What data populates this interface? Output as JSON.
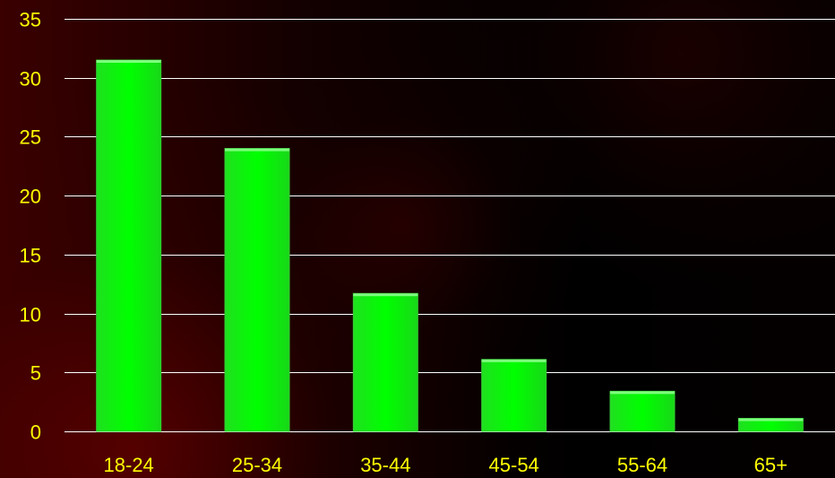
{
  "chart_data": {
    "type": "bar",
    "categories": [
      "18-24",
      "25-34",
      "35-44",
      "45-54",
      "55-64",
      "65+"
    ],
    "values": [
      31.5,
      24.0,
      11.7,
      6.1,
      3.4,
      1.1
    ],
    "title": "",
    "xlabel": "",
    "ylabel": "",
    "ylim": [
      0,
      35
    ],
    "yticks": [
      0,
      5,
      10,
      15,
      20,
      25,
      30,
      35
    ],
    "grid": true,
    "legend": "none",
    "colors": {
      "bar": "#00ff00",
      "bar_edge": "#33cc33",
      "tick_label": "#ffff00",
      "grid": "#ffffff"
    }
  }
}
